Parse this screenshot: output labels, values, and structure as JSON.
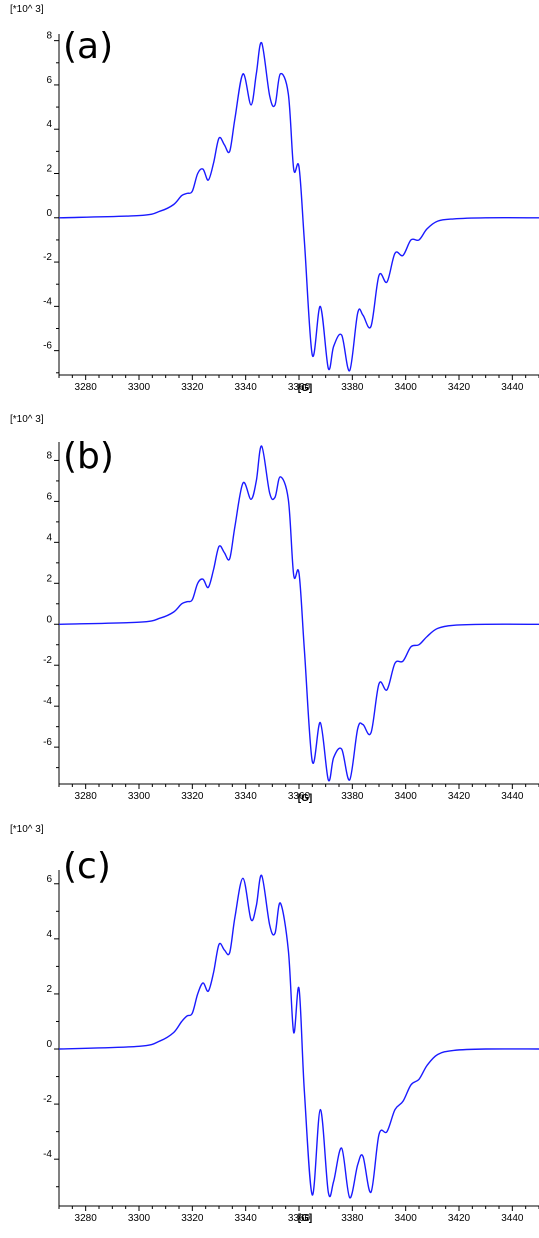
{
  "chart_data": [
    {
      "type": "line",
      "panel_label": "(a)",
      "multiplier_label": "[*10^ 3]",
      "xlabel": "[G]",
      "xlim": [
        3270,
        3450
      ],
      "ylim": [
        -7.1,
        8.3
      ],
      "xticks": [
        3280,
        3300,
        3320,
        3340,
        3360,
        3380,
        3400,
        3420,
        3440
      ],
      "yticks": [
        -6,
        -4,
        -2,
        0,
        2,
        4,
        6,
        8
      ],
      "color": "#1a1aff",
      "series": [
        {
          "x": [
            3270,
            3300,
            3308,
            3313,
            3316,
            3318,
            3320,
            3322,
            3324,
            3326,
            3328,
            3330,
            3332,
            3334,
            3336,
            3339,
            3342,
            3344,
            3346,
            3349,
            3351,
            3353,
            3356,
            3358,
            3360,
            3362,
            3365,
            3368,
            3371,
            3373,
            3376,
            3379,
            3382,
            3384,
            3387,
            3390,
            3393,
            3396,
            3399,
            3402,
            3405,
            3408,
            3412,
            3418,
            3430,
            3450
          ],
          "y": [
            0,
            0.1,
            0.3,
            0.6,
            1.0,
            1.1,
            1.2,
            2.0,
            2.2,
            1.7,
            2.5,
            3.6,
            3.3,
            3.0,
            4.5,
            6.5,
            5.1,
            6.5,
            7.9,
            5.5,
            5.1,
            6.5,
            5.6,
            2.2,
            2.3,
            -1.0,
            -6.2,
            -4.0,
            -6.8,
            -5.8,
            -5.3,
            -6.9,
            -4.3,
            -4.4,
            -4.9,
            -2.6,
            -2.9,
            -1.6,
            -1.7,
            -1.0,
            -1.0,
            -0.5,
            -0.15,
            -0.05,
            0,
            0
          ]
        }
      ]
    },
    {
      "type": "line",
      "panel_label": "(b)",
      "multiplier_label": "[*10^ 3]",
      "xlabel": "[G]",
      "xlim": [
        3270,
        3450
      ],
      "ylim": [
        -7.8,
        8.9
      ],
      "xticks": [
        3280,
        3300,
        3320,
        3340,
        3360,
        3380,
        3400,
        3420,
        3440
      ],
      "yticks": [
        -6,
        -4,
        -2,
        0,
        2,
        4,
        6,
        8
      ],
      "color": "#1a1aff",
      "series": [
        {
          "x": [
            3270,
            3300,
            3308,
            3313,
            3316,
            3318,
            3320,
            3322,
            3324,
            3326,
            3328,
            3330,
            3332,
            3334,
            3336,
            3339,
            3342,
            3344,
            3346,
            3349,
            3351,
            3353,
            3356,
            3358,
            3360,
            3362,
            3365,
            3368,
            3371,
            3373,
            3376,
            3379,
            3382,
            3384,
            3387,
            3390,
            3393,
            3396,
            3399,
            3402,
            3405,
            3408,
            3412,
            3418,
            3430,
            3450
          ],
          "y": [
            0,
            0.1,
            0.3,
            0.6,
            1.0,
            1.1,
            1.2,
            2.0,
            2.2,
            1.8,
            2.7,
            3.8,
            3.5,
            3.2,
            4.8,
            6.9,
            6.1,
            7.0,
            8.7,
            6.4,
            6.2,
            7.2,
            6.1,
            2.4,
            2.5,
            -1.2,
            -6.7,
            -4.8,
            -7.6,
            -6.5,
            -6.1,
            -7.6,
            -5.1,
            -4.9,
            -5.3,
            -2.9,
            -3.2,
            -1.9,
            -1.8,
            -1.1,
            -1.0,
            -0.6,
            -0.2,
            -0.05,
            0,
            0
          ]
        }
      ]
    },
    {
      "type": "line",
      "panel_label": "(c)",
      "multiplier_label": "[*10^ 3]",
      "xlabel": "[G]",
      "xlim": [
        3270,
        3450
      ],
      "ylim": [
        -5.7,
        6.5
      ],
      "xticks": [
        3280,
        3300,
        3320,
        3340,
        3360,
        3380,
        3400,
        3420,
        3440
      ],
      "yticks": [
        -4,
        -2,
        0,
        2,
        4,
        6
      ],
      "color": "#1a1aff",
      "series": [
        {
          "x": [
            3270,
            3300,
            3308,
            3313,
            3316,
            3318,
            3320,
            3322,
            3324,
            3326,
            3328,
            3330,
            3332,
            3334,
            3336,
            3339,
            3342,
            3344,
            3346,
            3349,
            3351,
            3353,
            3356,
            3358,
            3360,
            3362,
            3365,
            3368,
            3371,
            3373,
            3376,
            3379,
            3382,
            3384,
            3387,
            3390,
            3393,
            3396,
            3399,
            3402,
            3405,
            3408,
            3412,
            3418,
            3430,
            3450
          ],
          "y": [
            0,
            0.1,
            0.3,
            0.6,
            1.0,
            1.2,
            1.3,
            2.0,
            2.4,
            2.1,
            2.8,
            3.8,
            3.6,
            3.5,
            4.8,
            6.2,
            4.7,
            5.2,
            6.3,
            4.5,
            4.2,
            5.3,
            3.6,
            0.6,
            2.2,
            -1.5,
            -5.3,
            -2.2,
            -5.2,
            -4.8,
            -3.6,
            -5.4,
            -4.2,
            -3.9,
            -5.2,
            -3.1,
            -3.0,
            -2.2,
            -1.9,
            -1.3,
            -1.1,
            -0.6,
            -0.2,
            -0.05,
            0,
            0
          ]
        }
      ]
    }
  ]
}
